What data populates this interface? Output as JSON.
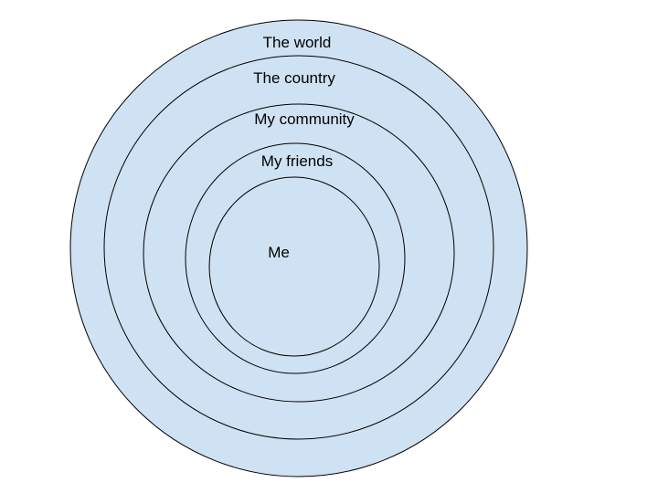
{
  "colors": {
    "fill": "#cfe2f3",
    "stroke": "#000000",
    "text": "#000000"
  },
  "rings": [
    {
      "label": "The world"
    },
    {
      "label": "The country"
    },
    {
      "label": "My community"
    },
    {
      "label": "My friends"
    },
    {
      "label": "Me"
    }
  ]
}
